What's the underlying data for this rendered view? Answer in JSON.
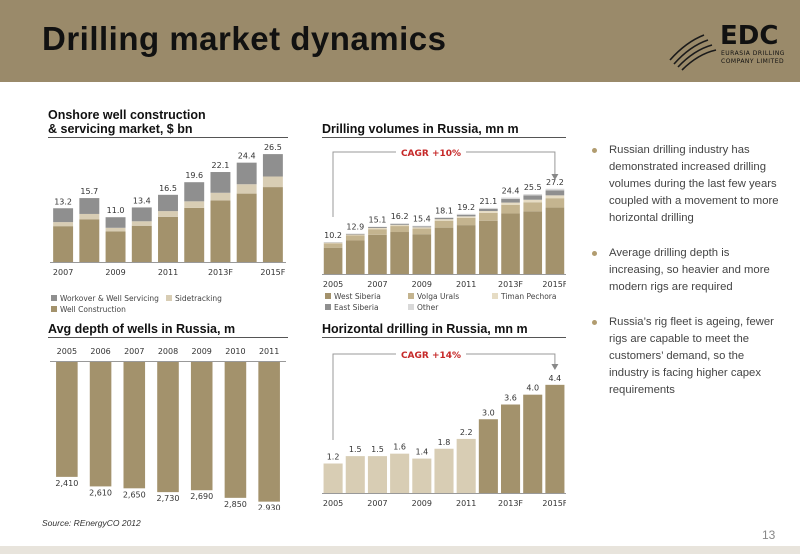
{
  "header": {
    "title": "Drilling market dynamics",
    "logo": {
      "text": "EDC",
      "subtitle_lines": [
        "EURASIA DRILLING",
        "COMPANY LIMITED"
      ]
    }
  },
  "colors": {
    "header_bg": "#9a8a6a",
    "gold_dark": "#a3926c",
    "grey": "#8f8f8f",
    "beige": "#d8cdb4",
    "cagr_red": "#c62828"
  },
  "bullets": [
    "Russian drilling industry has demonstrated increased drilling volumes during the last few years coupled with a movement to more horizontal drilling",
    "Average drilling depth is increasing, so heavier and more modern rigs are required",
    "Russia’s rig fleet is ageing, fewer rigs are capable to meet the customers’ demand, so the industry is facing higher capex requirements"
  ],
  "source": "Source: REnergyCO 2012",
  "page_number": "13",
  "chart_data": [
    {
      "id": "onshore",
      "type": "bar",
      "title": "Onshore well construction & servicing market, $ bn",
      "title_lines": [
        "Onshore well construction",
        "& servicing market, $ bn"
      ],
      "categories": [
        "2007",
        "2008",
        "2009",
        "2010",
        "2011",
        "2012",
        "2013F",
        "2014F",
        "2015F"
      ],
      "tick_labels": [
        "2007",
        "2009",
        "2011",
        "2013F",
        "2015F"
      ],
      "totals": [
        13.2,
        15.7,
        11.0,
        13.4,
        16.5,
        19.6,
        22.1,
        24.4,
        26.5
      ],
      "series": [
        {
          "name": "Well Construction",
          "color": "#a3926c",
          "values": [
            8.8,
            10.5,
            7.5,
            8.9,
            11.1,
            13.3,
            15.1,
            16.8,
            18.4
          ]
        },
        {
          "name": "Sidetracking",
          "color": "#d8cdb4",
          "values": [
            1.0,
            1.3,
            0.9,
            1.1,
            1.4,
            1.6,
            1.9,
            2.3,
            2.6
          ]
        },
        {
          "name": "Workover & Well Servicing",
          "color": "#8f8f8f",
          "values": [
            3.4,
            3.9,
            2.6,
            3.4,
            4.0,
            4.7,
            5.1,
            5.3,
            5.5
          ]
        }
      ],
      "legend": [
        "Workover & Well Servicing",
        "Sidetracking",
        "Well Construction"
      ],
      "ylim": [
        0,
        28
      ]
    },
    {
      "id": "volumes",
      "type": "bar",
      "title": "Drilling volumes in Russia, mn m",
      "categories": [
        "2005",
        "2006",
        "2007",
        "2008",
        "2009",
        "2010",
        "2011",
        "2012",
        "2013F",
        "2014F",
        "2015F"
      ],
      "tick_labels": [
        "2005",
        "2007",
        "2009",
        "2011",
        "2013F",
        "2015F"
      ],
      "totals": [
        10.2,
        12.9,
        15.1,
        16.2,
        15.4,
        18.1,
        19.2,
        21.1,
        24.4,
        25.5,
        27.2
      ],
      "series": [
        {
          "name": "West Siberia",
          "color": "#a3926c",
          "values": [
            8.4,
            10.7,
            12.5,
            13.4,
            12.7,
            14.8,
            15.6,
            17.0,
            19.3,
            20.0,
            21.2
          ]
        },
        {
          "name": "Volga Urals",
          "color": "#c4b48f",
          "values": [
            1.4,
            1.6,
            1.8,
            1.9,
            1.8,
            2.2,
            2.3,
            2.5,
            2.8,
            2.9,
            3.0
          ]
        },
        {
          "name": "Timan Pechora",
          "color": "#e6dcc4",
          "values": [
            0.2,
            0.3,
            0.4,
            0.4,
            0.4,
            0.5,
            0.5,
            0.6,
            0.7,
            0.8,
            0.9
          ]
        },
        {
          "name": "East Siberia",
          "color": "#8f8f8f",
          "values": [
            0.1,
            0.2,
            0.3,
            0.3,
            0.3,
            0.4,
            0.5,
            0.7,
            1.2,
            1.4,
            1.6
          ]
        },
        {
          "name": "Other",
          "color": "#d9d9d9",
          "values": [
            0.1,
            0.1,
            0.1,
            0.2,
            0.2,
            0.2,
            0.3,
            0.3,
            0.4,
            0.4,
            0.5
          ]
        }
      ],
      "legend": [
        "West Siberia",
        "Volga Urals",
        "Timan Pechora",
        "East Siberia",
        "Other"
      ],
      "annotation": "CAGR +10%",
      "ylim": [
        0,
        30
      ]
    },
    {
      "id": "depth",
      "type": "bar",
      "title": "Avg depth of wells in Russia, m",
      "orientation": "inverted",
      "x_axis_position": "top",
      "categories": [
        "2005",
        "2006",
        "2007",
        "2008",
        "2009",
        "2010",
        "2011"
      ],
      "values": [
        2410,
        2610,
        2650,
        2730,
        2690,
        2850,
        2930
      ],
      "value_labels": [
        "2,410",
        "2,610",
        "2,650",
        "2,730",
        "2,690",
        "2,850",
        "2,930"
      ],
      "color": "#a3926c",
      "ylim": [
        0,
        3000
      ]
    },
    {
      "id": "horizontal",
      "type": "bar",
      "title": "Horizontal drilling in Russia, mn m",
      "categories": [
        "2005",
        "2006",
        "2007",
        "2008",
        "2009",
        "2010",
        "2011",
        "2012",
        "2013F",
        "2014F",
        "2015F"
      ],
      "tick_labels": [
        "2005",
        "2007",
        "2009",
        "2011",
        "2013F",
        "2015F"
      ],
      "values": [
        1.2,
        1.5,
        1.5,
        1.6,
        1.4,
        1.8,
        2.2,
        3.0,
        3.6,
        4.0,
        4.4
      ],
      "colors": [
        "#d8cdb4",
        "#d8cdb4",
        "#d8cdb4",
        "#d8cdb4",
        "#d8cdb4",
        "#d8cdb4",
        "#d8cdb4",
        "#a3926c",
        "#a3926c",
        "#a3926c",
        "#a3926c"
      ],
      "annotation": "CAGR +14%",
      "ylim": [
        0,
        4.8
      ]
    }
  ]
}
